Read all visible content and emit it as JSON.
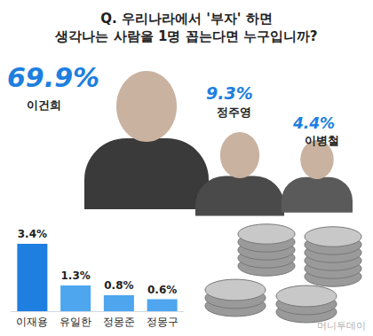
{
  "chart_data": {
    "type": "bar",
    "title": "Q. 우리나라에서 '부자' 하면\n생각나는 사람을 1명 꼽는다면 누구입니까?",
    "annotations": [
      {
        "name": "이건희",
        "value": 69.9,
        "value_label": "69.9%"
      },
      {
        "name": "정주영",
        "value": 9.3,
        "value_label": "9.3%"
      },
      {
        "name": "이병철",
        "value": 4.4,
        "value_label": "4.4%"
      }
    ],
    "categories": [
      "이재용",
      "유일한",
      "정몽준",
      "정몽구"
    ],
    "values": [
      3.4,
      1.3,
      0.8,
      0.6
    ],
    "value_labels": [
      "3.4%",
      "1.3%",
      "0.8%",
      "0.6%"
    ],
    "colors": [
      "#1e7fe0",
      "#4da6ee",
      "#4da6ee",
      "#4da6ee"
    ],
    "ylim": [
      0,
      3.4
    ],
    "grid": false,
    "data_labels": true,
    "tick_labels": "x",
    "source": "머니투데이"
  }
}
